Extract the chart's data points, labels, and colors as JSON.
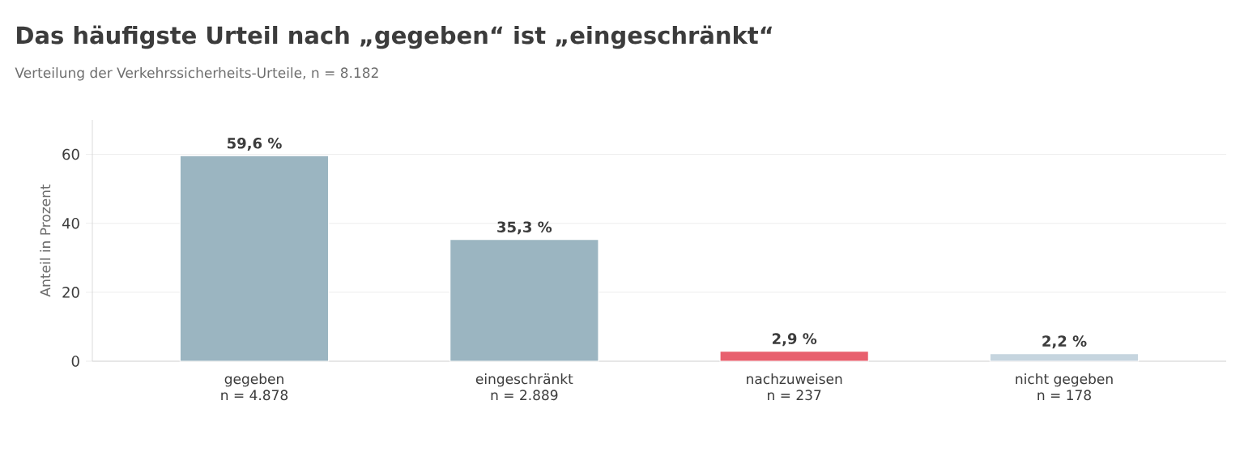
{
  "chart_data": {
    "type": "bar",
    "title": "Das häufigste Urteil nach „gegeben“ ist „eingeschränkt“",
    "subtitle": "Verteilung der Verkehrssicherheits-Urteile, n = 8.182",
    "ylabel": "Anteil in Prozent",
    "categories": [
      "gegeben\nn = 4.878",
      "eingeschränkt\nn = 2.889",
      "nachzuweisen\nn = 237",
      "nicht gegeben\nn = 178"
    ],
    "values": [
      59.6,
      35.3,
      2.9,
      2.2
    ],
    "colors": [
      "#9bb5c1",
      "#9bb5c1",
      "#e8606e",
      "#c6d5df"
    ],
    "value_labels": [
      "59,6 %",
      "35,3 %",
      "2,9 %",
      "2,2 %"
    ],
    "ylim": [
      0,
      70
    ],
    "yticks": [
      0,
      20,
      40,
      60
    ],
    "grid": "y"
  }
}
